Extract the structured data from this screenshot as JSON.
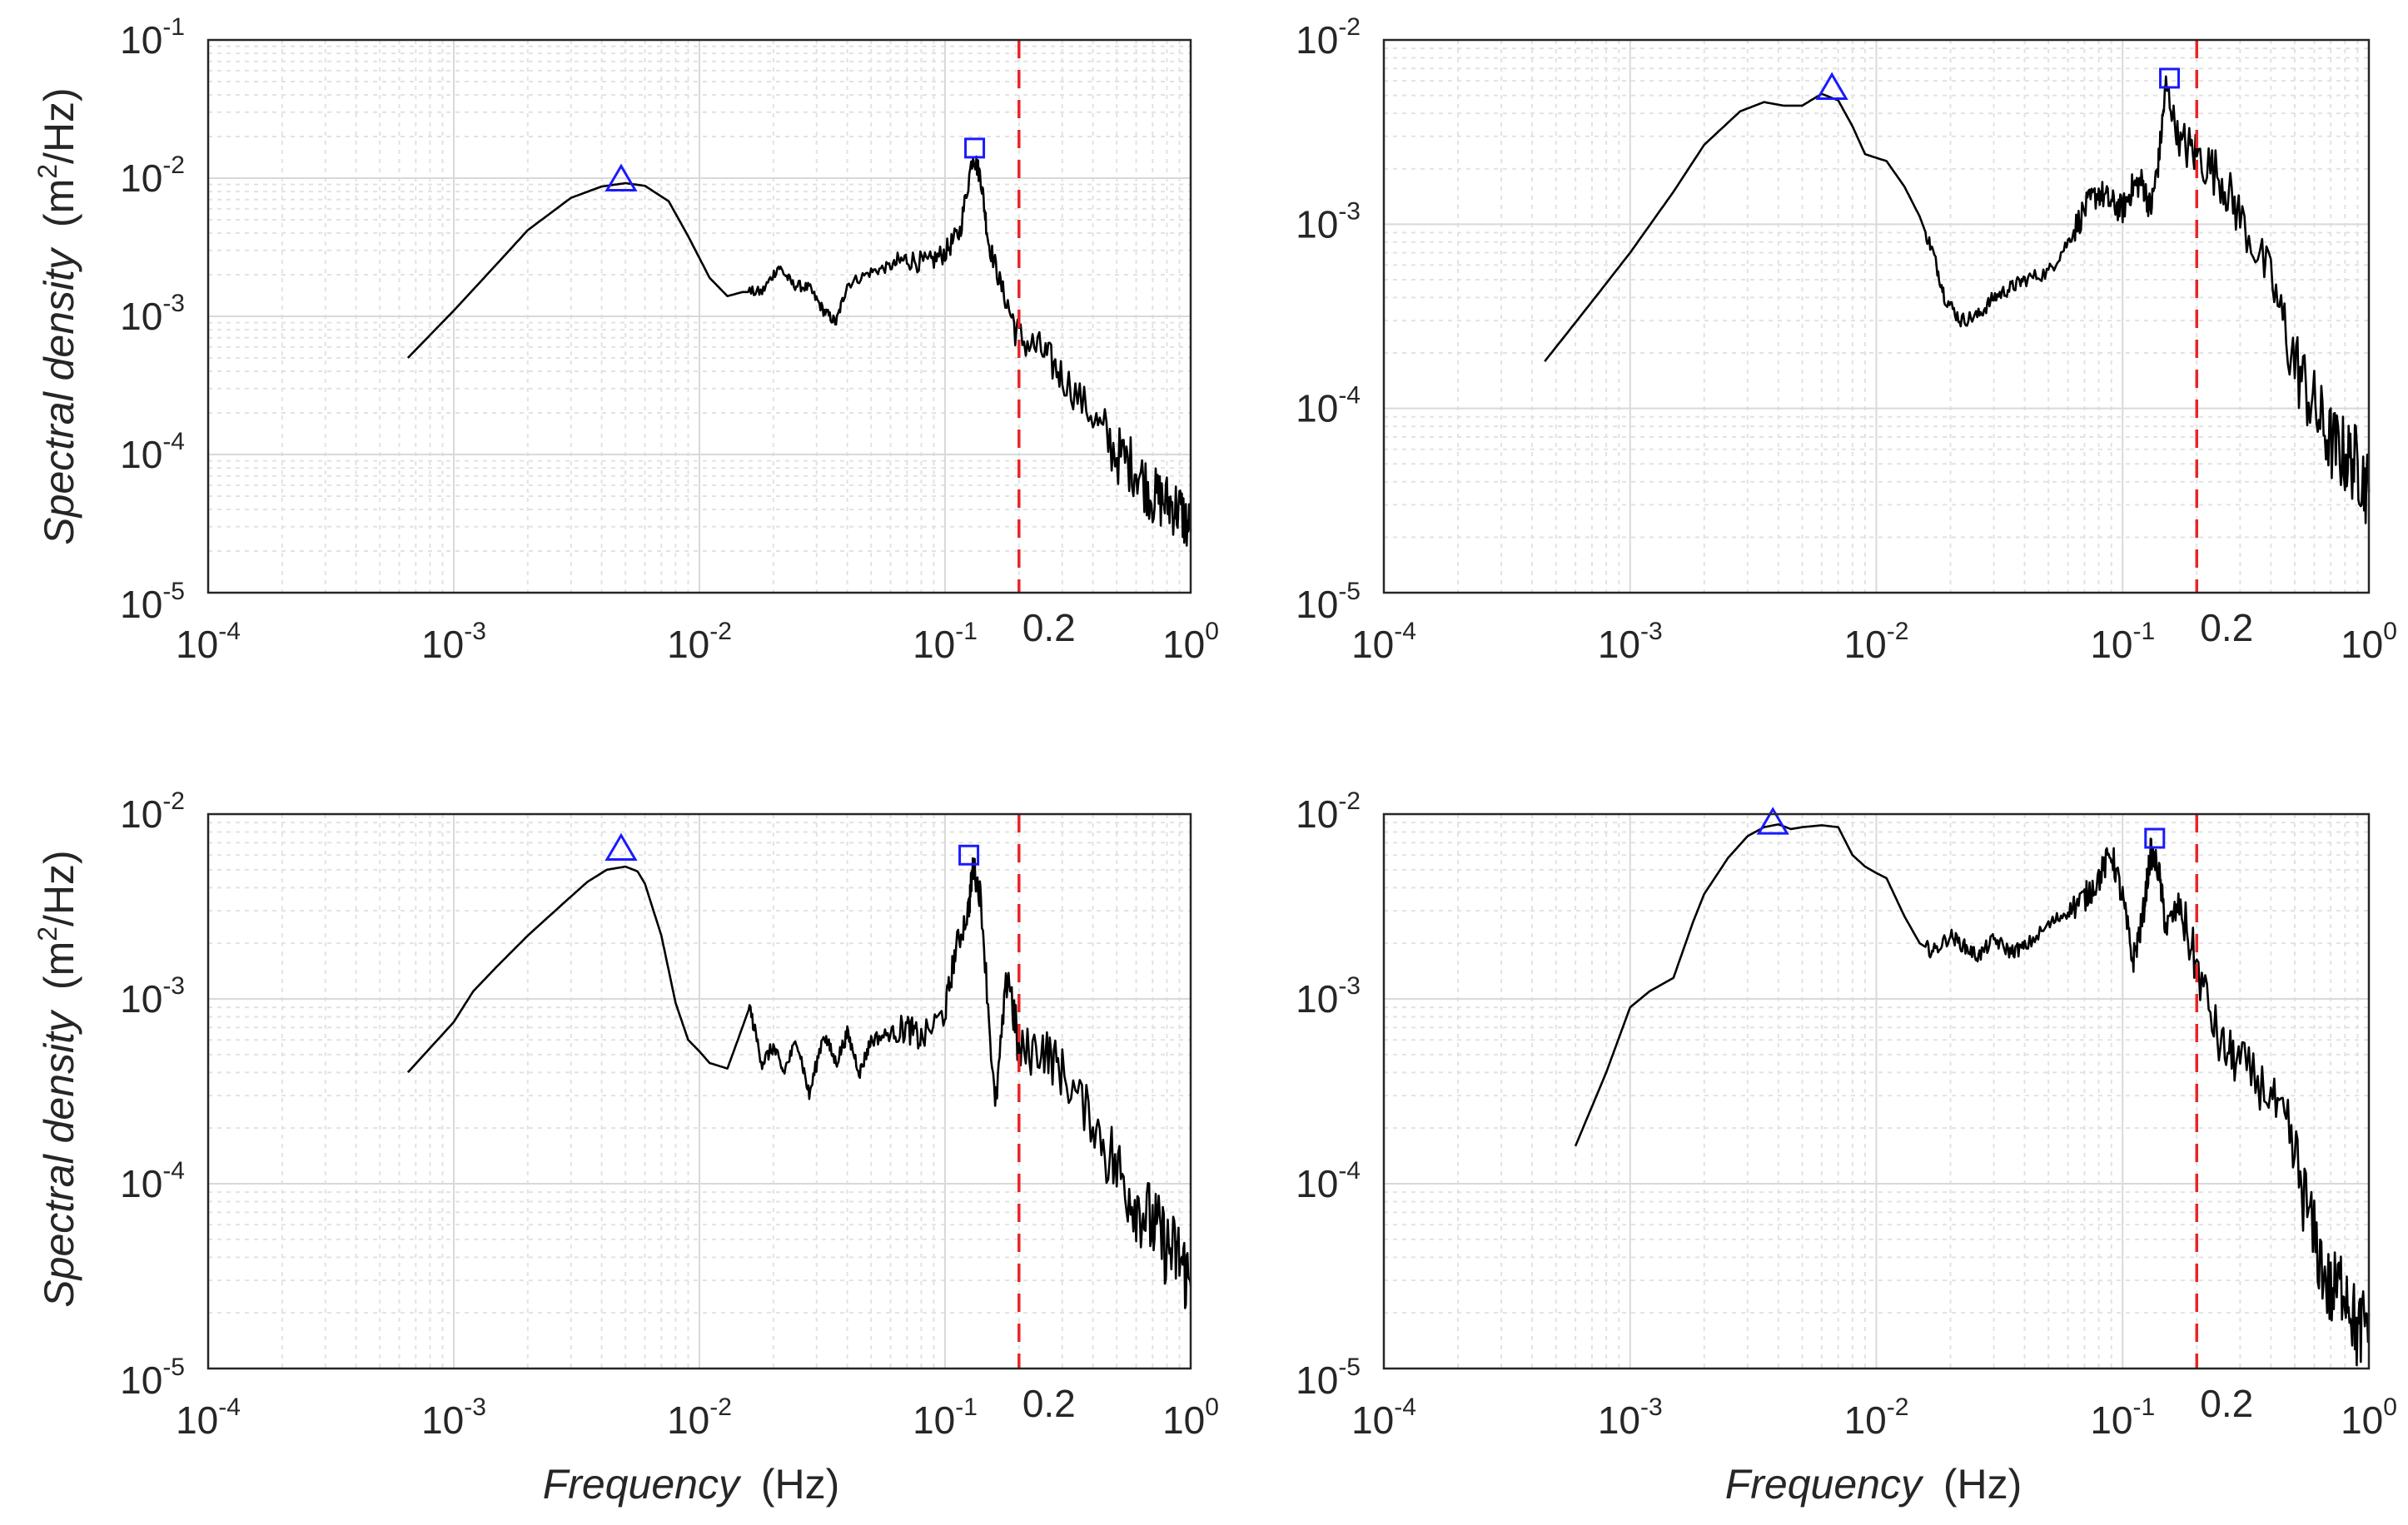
{
  "figure": {
    "xlabel": "Frequency",
    "xlabel_unit": "(Hz)",
    "ylabel": "Spectral density",
    "ylabel_unit_prefix": "(m",
    "ylabel_unit_exp": "2",
    "ylabel_unit_suffix": "/Hz)"
  },
  "colors": {
    "spectrum": "#000000",
    "cutoff": "#e8242a",
    "markers": "#1a1aff"
  },
  "chart_data": [
    {
      "type": "line",
      "panel": "top-left",
      "xscale": "log",
      "yscale": "log",
      "xlim": [
        0.0001,
        1
      ],
      "ylim": [
        1e-05,
        0.1
      ],
      "x_ticks": [
        {
          "base": "10",
          "exp": "-4"
        },
        {
          "base": "10",
          "exp": "-3"
        },
        {
          "base": "10",
          "exp": "-2"
        },
        {
          "base": "10",
          "exp": "-1"
        },
        {
          "base": "10",
          "exp": "0"
        }
      ],
      "y_ticks": [
        {
          "base": "10",
          "exp": "-5"
        },
        {
          "base": "10",
          "exp": "-4"
        },
        {
          "base": "10",
          "exp": "-3"
        },
        {
          "base": "10",
          "exp": "-2"
        },
        {
          "base": "10",
          "exp": "-1"
        }
      ],
      "cutoff": {
        "x": 0.2,
        "label": "0.2"
      },
      "grid": true,
      "series": [
        {
          "name": "spectrum",
          "x": [
            0.00065,
            0.001,
            0.0015,
            0.002,
            0.003,
            0.004,
            0.005,
            0.006,
            0.0075,
            0.009,
            0.011,
            0.013,
            0.015,
            0.018,
            0.021,
            0.024,
            0.028,
            0.032,
            0.036,
            0.04,
            0.05,
            0.06,
            0.07,
            0.085,
            0.1,
            0.115,
            0.13,
            0.14,
            0.15,
            0.17,
            0.2,
            0.25,
            0.3,
            0.4,
            0.5,
            0.6,
            0.7,
            0.8,
            0.9,
            1.0
          ],
          "y": [
            0.0005,
            0.0011,
            0.0024,
            0.0042,
            0.0072,
            0.0087,
            0.0092,
            0.0088,
            0.0068,
            0.0038,
            0.0019,
            0.0014,
            0.0015,
            0.0015,
            0.0023,
            0.0017,
            0.0016,
            0.0011,
            0.0009,
            0.0017,
            0.0021,
            0.0023,
            0.0026,
            0.0024,
            0.0029,
            0.0041,
            0.015,
            0.01,
            0.0035,
            0.0016,
            0.0007,
            0.00055,
            0.00037,
            0.00019,
            0.0001,
            8e-05,
            5e-05,
            4.5e-05,
            4e-05,
            2.8e-05
          ]
        },
        {
          "name": "peak-triangle",
          "marker": "triangle",
          "x": [
            0.0048
          ],
          "y": [
            0.0098
          ]
        },
        {
          "name": "peak-square",
          "marker": "square",
          "x": [
            0.132
          ],
          "y": [
            0.0165
          ]
        }
      ]
    },
    {
      "type": "line",
      "panel": "top-right",
      "xscale": "log",
      "yscale": "log",
      "xlim": [
        0.0001,
        1
      ],
      "ylim": [
        1e-05,
        0.01
      ],
      "x_ticks": [
        {
          "base": "10",
          "exp": "-4"
        },
        {
          "base": "10",
          "exp": "-3"
        },
        {
          "base": "10",
          "exp": "-2"
        },
        {
          "base": "10",
          "exp": "-1"
        },
        {
          "base": "10",
          "exp": "0"
        }
      ],
      "y_ticks": [
        {
          "base": "10",
          "exp": "-5"
        },
        {
          "base": "10",
          "exp": "-4"
        },
        {
          "base": "10",
          "exp": "-3"
        },
        {
          "base": "10",
          "exp": "-2"
        }
      ],
      "cutoff": {
        "x": 0.2,
        "label": "0.2"
      },
      "grid": true,
      "series": [
        {
          "name": "spectrum",
          "x": [
            0.00045,
            0.0007,
            0.001,
            0.0015,
            0.002,
            0.0028,
            0.0035,
            0.0042,
            0.005,
            0.006,
            0.007,
            0.008,
            0.009,
            0.011,
            0.013,
            0.015,
            0.017,
            0.019,
            0.022,
            0.026,
            0.03,
            0.035,
            0.04,
            0.05,
            0.06,
            0.07,
            0.08,
            0.09,
            0.1,
            0.11,
            0.12,
            0.13,
            0.14,
            0.15,
            0.17,
            0.2,
            0.25,
            0.3,
            0.4,
            0.5,
            0.6,
            0.7,
            0.8,
            0.9,
            1.0
          ],
          "y": [
            0.00018,
            0.00038,
            0.0007,
            0.0015,
            0.0027,
            0.0041,
            0.0046,
            0.0044,
            0.0044,
            0.0051,
            0.0047,
            0.0034,
            0.0024,
            0.0022,
            0.0016,
            0.0011,
            0.0007,
            0.0004,
            0.0003,
            0.00032,
            0.0004,
            0.00045,
            0.0005,
            0.00055,
            0.0008,
            0.0012,
            0.0015,
            0.0013,
            0.0012,
            0.0016,
            0.0017,
            0.0012,
            0.0022,
            0.0057,
            0.0028,
            0.0024,
            0.0018,
            0.0011,
            0.0005,
            0.00018,
            0.0001,
            6.5e-05,
            5.5e-05,
            5e-05,
            3.5e-05
          ]
        },
        {
          "name": "peak-triangle",
          "marker": "triangle",
          "x": [
            0.0066
          ],
          "y": [
            0.0055
          ]
        },
        {
          "name": "peak-square",
          "marker": "square",
          "x": [
            0.155
          ],
          "y": [
            0.0062
          ]
        }
      ]
    },
    {
      "type": "line",
      "panel": "bottom-left",
      "xscale": "log",
      "yscale": "log",
      "xlim": [
        0.0001,
        1
      ],
      "ylim": [
        1e-05,
        0.01
      ],
      "x_ticks": [
        {
          "base": "10",
          "exp": "-4"
        },
        {
          "base": "10",
          "exp": "-3"
        },
        {
          "base": "10",
          "exp": "-2"
        },
        {
          "base": "10",
          "exp": "-1"
        },
        {
          "base": "10",
          "exp": "0"
        }
      ],
      "y_ticks": [
        {
          "base": "10",
          "exp": "-5"
        },
        {
          "base": "10",
          "exp": "-4"
        },
        {
          "base": "10",
          "exp": "-3"
        },
        {
          "base": "10",
          "exp": "-2"
        }
      ],
      "cutoff": {
        "x": 0.2,
        "label": "0.2"
      },
      "grid": true,
      "series": [
        {
          "name": "spectrum",
          "x": [
            0.00065,
            0.001,
            0.0012,
            0.0015,
            0.002,
            0.0028,
            0.0035,
            0.0042,
            0.005,
            0.0056,
            0.006,
            0.007,
            0.008,
            0.009,
            0.01,
            0.011,
            0.013,
            0.014,
            0.016,
            0.018,
            0.02,
            0.022,
            0.025,
            0.028,
            0.032,
            0.036,
            0.04,
            0.045,
            0.05,
            0.06,
            0.07,
            0.08,
            0.1,
            0.11,
            0.125,
            0.13,
            0.14,
            0.16,
            0.18,
            0.2,
            0.25,
            0.3,
            0.4,
            0.5,
            0.6,
            0.7,
            0.8,
            0.9,
            1.0
          ],
          "y": [
            0.0004,
            0.00075,
            0.0011,
            0.0015,
            0.0022,
            0.0033,
            0.0043,
            0.005,
            0.0052,
            0.0049,
            0.0042,
            0.0022,
            0.00095,
            0.0006,
            0.00052,
            0.00045,
            0.00042,
            0.00055,
            0.0009,
            0.00045,
            0.00055,
            0.0004,
            0.0006,
            0.0003,
            0.00065,
            0.00045,
            0.00065,
            0.0004,
            0.0006,
            0.00065,
            0.0007,
            0.0006,
            0.00085,
            0.0018,
            0.0031,
            0.0053,
            0.0035,
            0.00025,
            0.0015,
            0.0005,
            0.00055,
            0.0004,
            0.00022,
            0.00012,
            8e-05,
            6e-05,
            4.5e-05,
            4e-05,
            2.8e-05
          ]
        },
        {
          "name": "peak-triangle",
          "marker": "triangle",
          "x": [
            0.0048
          ],
          "y": [
            0.0065
          ]
        },
        {
          "name": "peak-square",
          "marker": "square",
          "x": [
            0.125
          ],
          "y": [
            0.006
          ]
        }
      ]
    },
    {
      "type": "line",
      "panel": "bottom-right",
      "xscale": "log",
      "yscale": "log",
      "xlim": [
        0.0001,
        1
      ],
      "ylim": [
        1e-05,
        0.01
      ],
      "x_ticks": [
        {
          "base": "10",
          "exp": "-4"
        },
        {
          "base": "10",
          "exp": "-3"
        },
        {
          "base": "10",
          "exp": "-2"
        },
        {
          "base": "10",
          "exp": "-1"
        },
        {
          "base": "10",
          "exp": "0"
        }
      ],
      "y_ticks": [
        {
          "base": "10",
          "exp": "-5"
        },
        {
          "base": "10",
          "exp": "-4"
        },
        {
          "base": "10",
          "exp": "-3"
        },
        {
          "base": "10",
          "exp": "-2"
        }
      ],
      "cutoff": {
        "x": 0.2,
        "label": "0.2"
      },
      "grid": true,
      "series": [
        {
          "name": "spectrum",
          "x": [
            0.0006,
            0.0008,
            0.001,
            0.0012,
            0.0015,
            0.0018,
            0.002,
            0.0025,
            0.003,
            0.0035,
            0.004,
            0.0045,
            0.005,
            0.006,
            0.007,
            0.008,
            0.009,
            0.01,
            0.011,
            0.013,
            0.015,
            0.017,
            0.02,
            0.023,
            0.026,
            0.03,
            0.035,
            0.04,
            0.05,
            0.06,
            0.07,
            0.08,
            0.09,
            0.1,
            0.11,
            0.12,
            0.13,
            0.14,
            0.15,
            0.17,
            0.2,
            0.25,
            0.3,
            0.4,
            0.5,
            0.6,
            0.7,
            0.8,
            0.9,
            1.0
          ],
          "y": [
            0.00016,
            0.0004,
            0.0009,
            0.0011,
            0.0013,
            0.0026,
            0.0037,
            0.0058,
            0.0076,
            0.0085,
            0.0088,
            0.0083,
            0.0085,
            0.0087,
            0.0085,
            0.006,
            0.0052,
            0.0048,
            0.0045,
            0.0028,
            0.002,
            0.0018,
            0.0022,
            0.0019,
            0.0017,
            0.0021,
            0.0018,
            0.0019,
            0.0025,
            0.003,
            0.0035,
            0.0045,
            0.0062,
            0.0035,
            0.0016,
            0.0026,
            0.0062,
            0.005,
            0.0024,
            0.0032,
            0.0015,
            0.00055,
            0.00045,
            0.0003,
            0.00014,
            5e-05,
            2.5e-05,
            3e-05,
            1.5e-05,
            2e-05
          ]
        },
        {
          "name": "peak-triangle",
          "marker": "triangle",
          "x": [
            0.0038
          ],
          "y": [
            0.009
          ]
        },
        {
          "name": "peak-square",
          "marker": "square",
          "x": [
            0.135
          ],
          "y": [
            0.0074
          ]
        }
      ]
    }
  ]
}
